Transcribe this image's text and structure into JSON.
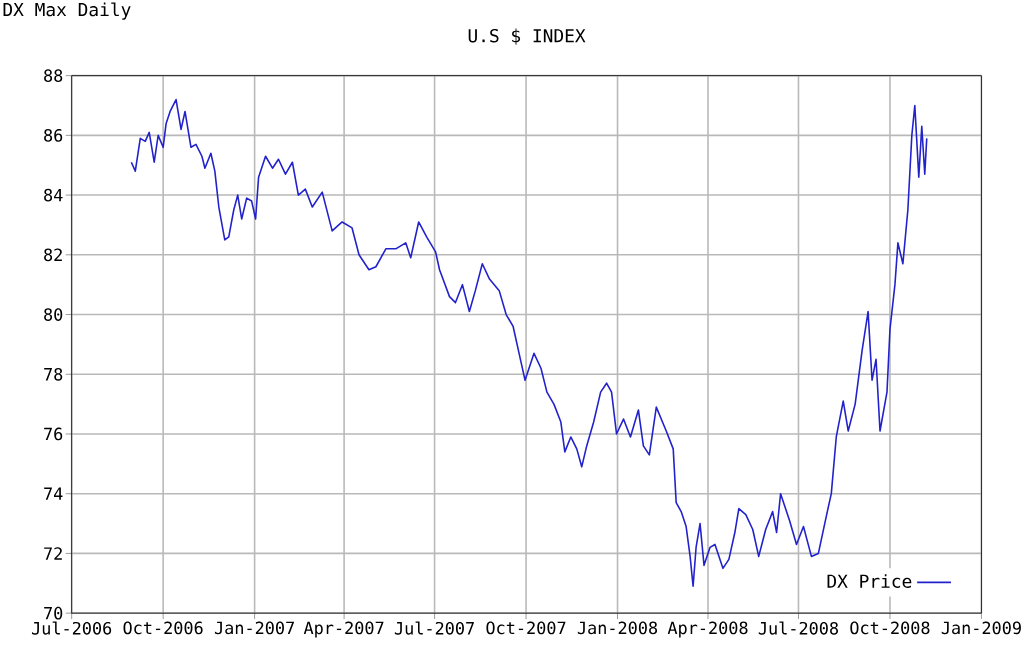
{
  "chart_data": {
    "type": "line",
    "title": "U.S $ INDEX",
    "annotations": [
      "DX Max Daily"
    ],
    "xlim": [
      "2006-07-01",
      "2009-01-01"
    ],
    "xticks": [
      {
        "value": "2006-07-01",
        "label": "Jul-2006"
      },
      {
        "value": "2006-10-01",
        "label": "Oct-2006"
      },
      {
        "value": "2007-01-01",
        "label": "Jan-2007"
      },
      {
        "value": "2007-04-01",
        "label": "Apr-2007"
      },
      {
        "value": "2007-07-01",
        "label": "Jul-2007"
      },
      {
        "value": "2007-10-01",
        "label": "Oct-2007"
      },
      {
        "value": "2008-01-01",
        "label": "Jan-2008"
      },
      {
        "value": "2008-04-01",
        "label": "Apr-2008"
      },
      {
        "value": "2008-07-01",
        "label": "Jul-2008"
      },
      {
        "value": "2008-10-01",
        "label": "Oct-2008"
      },
      {
        "value": "2009-01-01",
        "label": "Jan-2009"
      }
    ],
    "ylim": [
      70,
      88
    ],
    "yticks": [
      70,
      72,
      74,
      76,
      78,
      80,
      82,
      84,
      86,
      88
    ],
    "grid": true,
    "legend": "bottom right",
    "series": [
      {
        "name": "DX Price",
        "color": "#2222cc",
        "x": [
          "2006-08-30",
          "2006-09-03",
          "2006-09-08",
          "2006-09-13",
          "2006-09-17",
          "2006-09-22",
          "2006-09-26",
          "2006-10-01",
          "2006-10-04",
          "2006-10-08",
          "2006-10-14",
          "2006-10-19",
          "2006-10-23",
          "2006-10-29",
          "2006-11-03",
          "2006-11-09",
          "2006-11-12",
          "2006-11-18",
          "2006-11-22",
          "2006-11-26",
          "2006-12-02",
          "2006-12-06",
          "2006-12-11",
          "2006-12-15",
          "2006-12-19",
          "2006-12-24",
          "2006-12-29",
          "2007-01-02",
          "2007-01-05",
          "2007-01-12",
          "2007-01-19",
          "2007-01-25",
          "2007-02-01",
          "2007-02-08",
          "2007-02-14",
          "2007-02-21",
          "2007-02-28",
          "2007-03-10",
          "2007-03-20",
          "2007-03-30",
          "2007-04-09",
          "2007-04-16",
          "2007-04-26",
          "2007-05-03",
          "2007-05-13",
          "2007-05-23",
          "2007-06-02",
          "2007-06-07",
          "2007-06-15",
          "2007-06-23",
          "2007-07-02",
          "2007-07-06",
          "2007-07-16",
          "2007-07-22",
          "2007-07-29",
          "2007-08-05",
          "2007-08-11",
          "2007-08-18",
          "2007-08-25",
          "2007-09-04",
          "2007-09-11",
          "2007-09-18",
          "2007-09-24",
          "2007-09-26",
          "2007-09-30",
          "2007-10-09",
          "2007-10-16",
          "2007-10-22",
          "2007-10-29",
          "2007-11-05",
          "2007-11-09",
          "2007-11-15",
          "2007-11-21",
          "2007-11-26",
          "2007-12-01",
          "2007-12-08",
          "2007-12-15",
          "2007-12-21",
          "2007-12-26",
          "2007-12-31",
          "2008-01-07",
          "2008-01-14",
          "2008-01-22",
          "2008-01-27",
          "2008-02-02",
          "2008-02-09",
          "2008-02-19",
          "2008-02-26",
          "2008-02-29",
          "2008-03-05",
          "2008-03-10",
          "2008-03-14",
          "2008-03-17",
          "2008-03-20",
          "2008-03-24",
          "2008-03-28",
          "2008-04-03",
          "2008-04-08",
          "2008-04-16",
          "2008-04-22",
          "2008-04-28",
          "2008-05-02",
          "2008-05-09",
          "2008-05-16",
          "2008-05-22",
          "2008-05-29",
          "2008-06-05",
          "2008-06-09",
          "2008-06-13",
          "2008-06-22",
          "2008-06-29",
          "2008-07-06",
          "2008-07-14",
          "2008-07-21",
          "2008-07-30",
          "2008-08-03",
          "2008-08-08",
          "2008-08-15",
          "2008-08-20",
          "2008-08-27",
          "2008-09-03",
          "2008-09-09",
          "2008-09-13",
          "2008-09-17",
          "2008-09-21",
          "2008-09-28",
          "2008-10-01",
          "2008-10-06",
          "2008-10-09",
          "2008-10-14",
          "2008-10-19",
          "2008-10-23",
          "2008-10-26",
          "2008-10-30",
          "2008-11-02",
          "2008-11-05",
          "2008-11-07"
        ],
        "values": [
          85.1,
          84.8,
          85.9,
          85.8,
          86.1,
          85.1,
          86.0,
          85.6,
          86.4,
          86.8,
          87.2,
          86.2,
          86.8,
          85.6,
          85.7,
          85.3,
          84.9,
          85.4,
          84.8,
          83.6,
          82.5,
          82.6,
          83.5,
          84.0,
          83.2,
          83.9,
          83.8,
          83.2,
          84.6,
          85.3,
          84.9,
          85.2,
          84.7,
          85.1,
          84.0,
          84.2,
          83.6,
          84.1,
          82.8,
          83.1,
          82.9,
          82.0,
          81.5,
          81.6,
          82.2,
          82.2,
          82.4,
          81.9,
          83.1,
          82.6,
          82.1,
          81.5,
          80.6,
          80.4,
          81.0,
          80.1,
          80.8,
          81.7,
          81.2,
          80.8,
          80.0,
          79.6,
          78.7,
          78.4,
          77.8,
          78.7,
          78.2,
          77.4,
          77.0,
          76.4,
          75.4,
          75.9,
          75.5,
          74.9,
          75.6,
          76.4,
          77.4,
          77.7,
          77.4,
          76.0,
          76.5,
          75.9,
          76.8,
          75.6,
          75.3,
          76.9,
          76.1,
          75.5,
          73.7,
          73.4,
          72.9,
          71.9,
          70.9,
          72.2,
          73.0,
          71.6,
          72.2,
          72.3,
          71.5,
          71.8,
          72.7,
          73.5,
          73.3,
          72.8,
          71.9,
          72.8,
          73.4,
          72.7,
          74.0,
          73.1,
          72.3,
          72.9,
          71.9,
          72.0,
          73.4,
          74.0,
          75.9,
          77.1,
          76.1,
          77.0,
          78.8,
          80.1,
          77.8,
          78.5,
          76.1,
          77.4,
          79.5,
          81.0,
          82.4,
          81.7,
          83.5,
          86.0,
          87.0,
          84.6,
          86.3,
          84.7,
          85.9
        ]
      }
    ]
  }
}
